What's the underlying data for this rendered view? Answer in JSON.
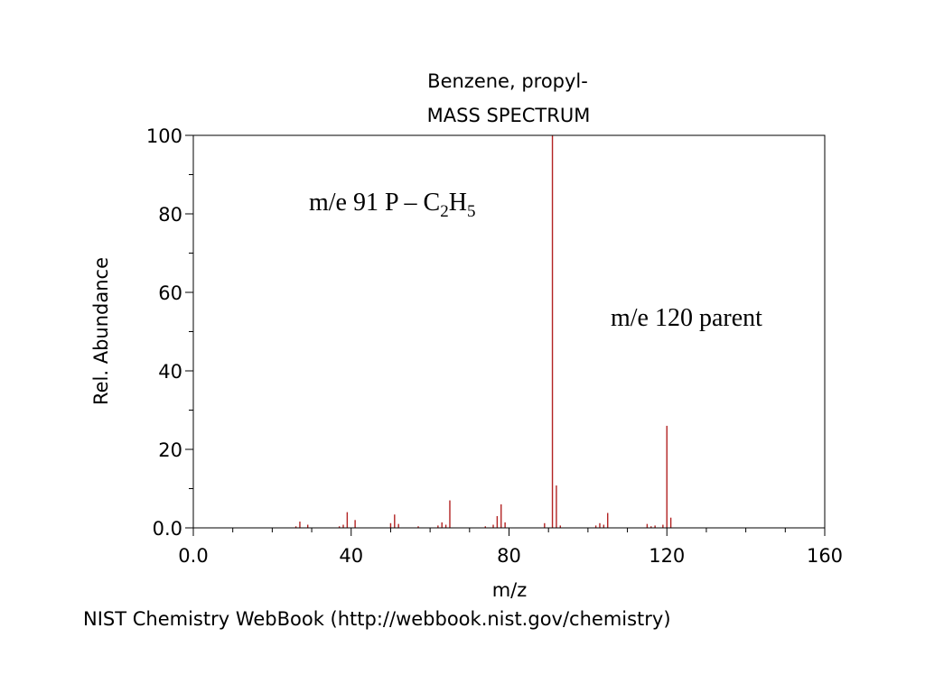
{
  "chart_data": {
    "type": "bar",
    "title": "Benzene, propyl-",
    "subtitle": "MASS SPECTRUM",
    "xlabel": "m/z",
    "ylabel": "Rel. Abundance",
    "xlim": [
      0,
      160
    ],
    "ylim": [
      0,
      100
    ],
    "x_ticks": [
      "0.0",
      "40",
      "80",
      "120",
      "160"
    ],
    "y_ticks": [
      "0.0",
      "20",
      "40",
      "60",
      "80",
      "100"
    ],
    "x_tick_values": [
      0,
      40,
      80,
      120,
      160
    ],
    "y_tick_values": [
      0,
      20,
      40,
      60,
      80,
      100
    ],
    "grid": false,
    "bar_color": "#b22222",
    "peaks": [
      {
        "mz": 26,
        "abundance": 0.4
      },
      {
        "mz": 27,
        "abundance": 1.6
      },
      {
        "mz": 29,
        "abundance": 0.8
      },
      {
        "mz": 37,
        "abundance": 0.4
      },
      {
        "mz": 38,
        "abundance": 0.8
      },
      {
        "mz": 39,
        "abundance": 4.0
      },
      {
        "mz": 41,
        "abundance": 2.0
      },
      {
        "mz": 50,
        "abundance": 1.2
      },
      {
        "mz": 51,
        "abundance": 3.4
      },
      {
        "mz": 52,
        "abundance": 1.0
      },
      {
        "mz": 57,
        "abundance": 0.4
      },
      {
        "mz": 62,
        "abundance": 0.6
      },
      {
        "mz": 63,
        "abundance": 1.4
      },
      {
        "mz": 64,
        "abundance": 0.8
      },
      {
        "mz": 65,
        "abundance": 7.0
      },
      {
        "mz": 74,
        "abundance": 0.4
      },
      {
        "mz": 76,
        "abundance": 0.8
      },
      {
        "mz": 77,
        "abundance": 3.0
      },
      {
        "mz": 78,
        "abundance": 6.0
      },
      {
        "mz": 79,
        "abundance": 1.4
      },
      {
        "mz": 89,
        "abundance": 1.2
      },
      {
        "mz": 91,
        "abundance": 100
      },
      {
        "mz": 92,
        "abundance": 10.8
      },
      {
        "mz": 93,
        "abundance": 0.6
      },
      {
        "mz": 102,
        "abundance": 0.6
      },
      {
        "mz": 103,
        "abundance": 1.2
      },
      {
        "mz": 104,
        "abundance": 0.8
      },
      {
        "mz": 105,
        "abundance": 3.8
      },
      {
        "mz": 115,
        "abundance": 1.0
      },
      {
        "mz": 116,
        "abundance": 0.4
      },
      {
        "mz": 117,
        "abundance": 0.6
      },
      {
        "mz": 119,
        "abundance": 0.8
      },
      {
        "mz": 120,
        "abundance": 26
      },
      {
        "mz": 121,
        "abundance": 2.6
      }
    ],
    "annotations": [
      {
        "prefix": "m/e 91 P – C",
        "sub1": "2",
        "mid": "H",
        "sub2": "5"
      },
      {
        "text": "m/e 120 parent"
      }
    ]
  },
  "footer": "NIST Chemistry WebBook (http://webbook.nist.gov/chemistry)"
}
